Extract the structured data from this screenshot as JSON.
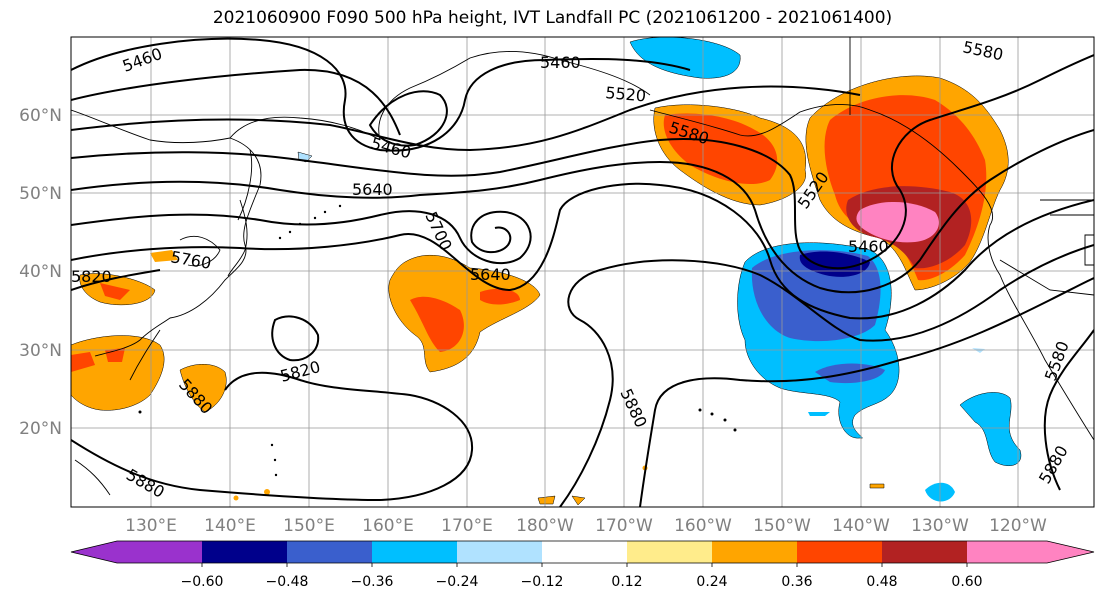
{
  "title": "2021060900 F090 500 hPa height, IVT Landfall PC (2021061200 - 2021061400)",
  "lat_labels": [
    "60°N",
    "50°N",
    "40°N",
    "30°N",
    "20°N"
  ],
  "lon_labels": [
    "130°E",
    "140°E",
    "150°E",
    "160°E",
    "170°E",
    "180°W",
    "170°W",
    "160°W",
    "150°W",
    "140°W",
    "130°W",
    "120°W"
  ],
  "contour_labels": [
    "5460",
    "5460",
    "5460",
    "5460",
    "5520",
    "5520",
    "5580",
    "5580",
    "5640",
    "5640",
    "5700",
    "5760",
    "5820",
    "5820",
    "5880",
    "5880",
    "5880",
    "5880",
    "5580"
  ],
  "colorbar": {
    "tick_labels": [
      "−0.60",
      "−0.48",
      "−0.36",
      "−0.24",
      "−0.12",
      "0.12",
      "0.24",
      "0.36",
      "0.48",
      "0.60"
    ],
    "colors": [
      "#9a32cd",
      "#00008b",
      "#3a5fcd",
      "#00bfff",
      "#b0e2ff",
      "#ffffff",
      "#ffec8b",
      "#ffa500",
      "#ff4500",
      "#b22222",
      "#ff83c1"
    ]
  },
  "colors": {
    "land_line": "#000000",
    "grid": "#999999",
    "axis_label": "#808080"
  }
}
